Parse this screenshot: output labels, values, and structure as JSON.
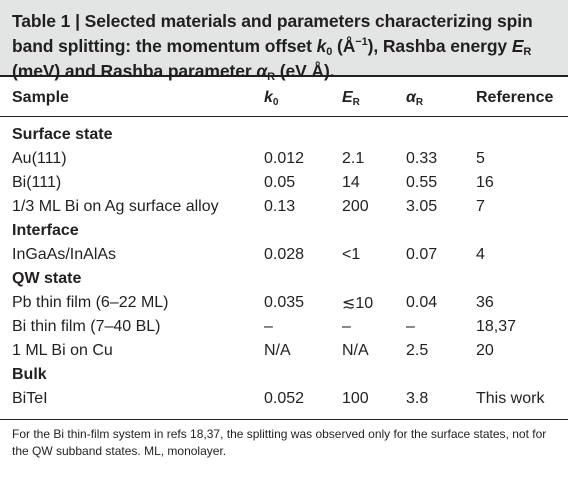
{
  "caption": {
    "lead": "Table 1 | Selected materials and parameters characterizing spin band splitting: the momentum offset ",
    "k0_sym": "k",
    "k0_sub": "0",
    "k0_unit_open": " (Å",
    "k0_unit_sup": "−1",
    "k0_unit_close": "), Rashba energy ",
    "er_sym": "E",
    "er_sub": "R",
    "er_unit": " (meV) and Rashba parameter ",
    "alpha_sym": "α",
    "alpha_sub": "R",
    "alpha_unit": " (eV Å)."
  },
  "headers": {
    "sample": "Sample",
    "k0": "k",
    "k0_sub": "0",
    "er": "E",
    "er_sub": "R",
    "alpha": "α",
    "alpha_sub": "R",
    "reference": "Reference"
  },
  "rows": [
    {
      "type": "section",
      "sample": "Surface state"
    },
    {
      "type": "data",
      "sample": "Au(111)",
      "k0": "0.012",
      "er": "2.1",
      "alpha": "0.33",
      "ref": "5"
    },
    {
      "type": "data",
      "sample": "Bi(111)",
      "k0": "0.05",
      "er": "14",
      "alpha": "0.55",
      "ref": "16"
    },
    {
      "type": "data",
      "sample": "1/3 ML Bi on Ag surface alloy",
      "k0": "0.13",
      "er": "200",
      "alpha": "3.05",
      "ref": "7"
    },
    {
      "type": "section",
      "sample": "Interface"
    },
    {
      "type": "data",
      "sample": "InGaAs/InAlAs",
      "k0": "0.028",
      "er": "<1",
      "alpha": "0.07",
      "ref": "4"
    },
    {
      "type": "section",
      "sample": "QW state"
    },
    {
      "type": "data",
      "sample": "Pb thin film (6–22 ML)",
      "k0": "0.035",
      "er": "≲10",
      "alpha": "0.04",
      "ref": "36"
    },
    {
      "type": "data",
      "sample": "Bi thin film (7–40 BL)",
      "k0": "–",
      "er": "–",
      "alpha": "–",
      "ref": "18,37"
    },
    {
      "type": "data",
      "sample": "1 ML Bi on Cu",
      "k0": "N/A",
      "er": "N/A",
      "alpha": "2.5",
      "ref": "20"
    },
    {
      "type": "section",
      "sample": "Bulk"
    },
    {
      "type": "data",
      "sample": "BiTeI",
      "k0": "0.052",
      "er": "100",
      "alpha": "3.8",
      "ref": "This work"
    }
  ],
  "footnote": "For the Bi thin-film system in refs 18,37, the splitting was observed only for the surface states, not for the QW subband states. ML, monolayer."
}
